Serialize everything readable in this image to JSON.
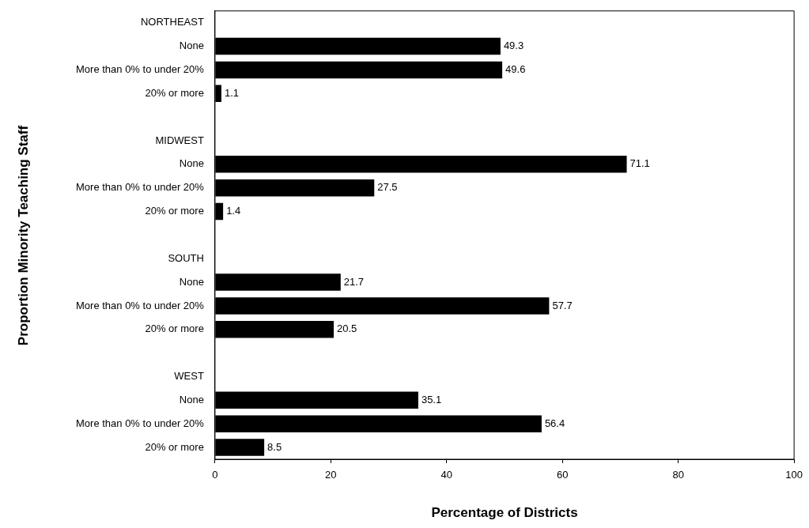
{
  "chart_data": {
    "type": "bar",
    "orientation": "horizontal",
    "xlabel": "Percentage of Districts",
    "ylabel": "Proportion Minority Teaching Staff",
    "categories": [
      "NORTHEAST",
      "None",
      "More than 0% to under 20%",
      "20% or more",
      null,
      "MIDWEST",
      "None",
      "More than 0% to under 20%",
      "20% or more",
      null,
      "SOUTH",
      "None",
      "More than 0% to under 20%",
      "20% or more",
      null,
      "WEST",
      "None",
      "More than 0% to under 20%",
      "20% or more"
    ],
    "values": [
      null,
      49.3,
      49.6,
      1.1,
      null,
      null,
      71.1,
      27.5,
      1.4,
      null,
      null,
      21.7,
      57.7,
      20.5,
      null,
      null,
      35.1,
      56.4,
      8.5
    ],
    "color": "#000000",
    "xlim": [
      0,
      100
    ],
    "xticks": [
      0,
      20,
      40,
      60,
      80,
      100
    ],
    "grid": false,
    "legend": false,
    "data_labels": true
  }
}
